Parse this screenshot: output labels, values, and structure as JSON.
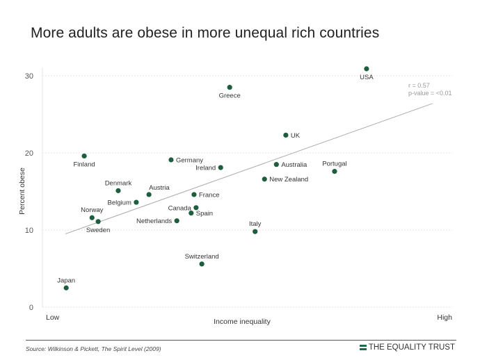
{
  "title": "More adults are obese in more unequal rich countries",
  "footer": {
    "source": "Source: Wilkinson & Pickett, The Spirit Level (2009)",
    "brand": "THE EQUALITY TRUST",
    "brand_icon": "equals-bars-icon"
  },
  "colors": {
    "point": "#1e5e3f",
    "brand": "#1e6b4a",
    "trendline": "#aaaaaa"
  },
  "chart_data": {
    "type": "scatter",
    "title": "More adults are obese in more unequal rich countries",
    "xlabel": "Income inequality",
    "ylabel": "Percent obese",
    "x_tick_labels": [
      "Low",
      "High"
    ],
    "xlim": [
      0,
      100
    ],
    "ylim": [
      0,
      30
    ],
    "yticks": [
      0,
      10,
      20,
      30
    ],
    "grid": "horizontal dotted",
    "annotation": {
      "r": "r = 0.57",
      "p": "p-value = <0.01"
    },
    "trendline": {
      "x": [
        5.6,
        95.2
      ],
      "y": [
        9.5,
        26.4
      ]
    },
    "points": [
      {
        "name": "USA",
        "x": 79.1,
        "y": 30.9,
        "label_pos": "below"
      },
      {
        "name": "Greece",
        "x": 45.7,
        "y": 28.5,
        "label_pos": "below"
      },
      {
        "name": "UK",
        "x": 59.4,
        "y": 22.3,
        "label_pos": "right"
      },
      {
        "name": "Finland",
        "x": 10.2,
        "y": 19.6,
        "label_pos": "below"
      },
      {
        "name": "Germany",
        "x": 31.4,
        "y": 19.1,
        "label_pos": "right"
      },
      {
        "name": "Ireland",
        "x": 43.5,
        "y": 18.1,
        "label_pos": "left"
      },
      {
        "name": "Australia",
        "x": 57.1,
        "y": 18.5,
        "label_pos": "right"
      },
      {
        "name": "Portugal",
        "x": 71.3,
        "y": 17.6,
        "label_pos": "above"
      },
      {
        "name": "New Zealand",
        "x": 54.2,
        "y": 16.6,
        "label_pos": "right"
      },
      {
        "name": "Denmark",
        "x": 18.5,
        "y": 15.1,
        "label_pos": "above"
      },
      {
        "name": "Austria",
        "x": 26.0,
        "y": 14.6,
        "label_pos": "above-right"
      },
      {
        "name": "France",
        "x": 37.0,
        "y": 14.6,
        "label_pos": "right"
      },
      {
        "name": "Belgium",
        "x": 22.9,
        "y": 13.6,
        "label_pos": "left"
      },
      {
        "name": "Canada",
        "x": 37.5,
        "y": 12.9,
        "label_pos": "left"
      },
      {
        "name": "Spain",
        "x": 36.3,
        "y": 12.2,
        "label_pos": "right"
      },
      {
        "name": "Norway",
        "x": 12.1,
        "y": 11.6,
        "label_pos": "above"
      },
      {
        "name": "Sweden",
        "x": 13.6,
        "y": 11.1,
        "label_pos": "below"
      },
      {
        "name": "Netherlands",
        "x": 32.8,
        "y": 11.2,
        "label_pos": "left"
      },
      {
        "name": "Italy",
        "x": 51.9,
        "y": 9.8,
        "label_pos": "above"
      },
      {
        "name": "Switzerland",
        "x": 38.9,
        "y": 5.6,
        "label_pos": "above"
      },
      {
        "name": "Japan",
        "x": 5.8,
        "y": 2.5,
        "label_pos": "above"
      }
    ]
  }
}
